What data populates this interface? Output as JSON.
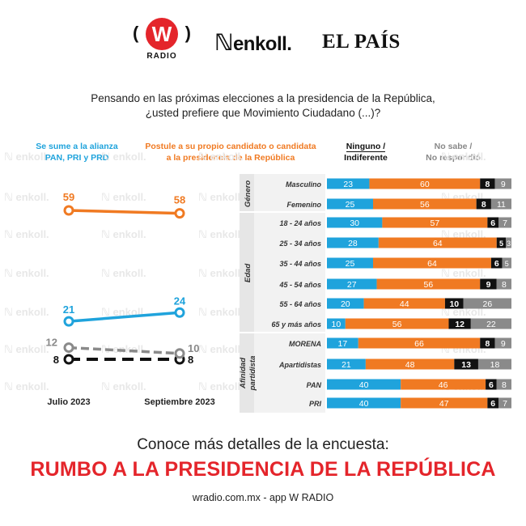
{
  "logos": {
    "wradio_letter": "W",
    "wradio_name": "RADIO",
    "enkoll": "enkoll.",
    "elpais": "EL PAÍS"
  },
  "question": {
    "line1": "Pensando en las próximas elecciones a la presidencia de la República,",
    "line2": "¿usted prefiere que Movimiento Ciudadano (...)?"
  },
  "legend": {
    "blue": [
      "Se sume a la alianza",
      "PAN, PRI y PRD"
    ],
    "orange": [
      "Postule a su propio candidato o candidata",
      "a la presidencia de la República"
    ],
    "black": [
      "Ninguno /",
      "Indiferente"
    ],
    "gray": [
      "No sabe /",
      "No respondió"
    ]
  },
  "watermark": "enkoll.",
  "colors": {
    "blue": "#1fa3dc",
    "orange": "#f07a22",
    "black": "#111111",
    "gray": "#8a8a8a",
    "red": "#e4252b"
  },
  "chart_data": [
    {
      "type": "line",
      "categories": [
        "Julio 2023",
        "Septiembre 2023"
      ],
      "series": [
        {
          "name": "Se sume a la alianza PAN, PRI y PRD",
          "values": [
            21,
            24
          ],
          "color": "blue",
          "style": "solid"
        },
        {
          "name": "Postule a su propio candidato o candidata a la presidencia de la República",
          "values": [
            59,
            58
          ],
          "color": "orange",
          "style": "solid"
        },
        {
          "name": "Ninguno / Indiferente",
          "values": [
            8,
            8
          ],
          "color": "black",
          "style": "dashed"
        },
        {
          "name": "No sabe / No respondió",
          "values": [
            12,
            10
          ],
          "color": "gray",
          "style": "dashed"
        }
      ]
    },
    {
      "type": "bar",
      "stacked": true,
      "groups": [
        {
          "label": "Género",
          "rows": [
            {
              "label": "Masculino",
              "values": [
                23,
                60,
                8,
                9
              ]
            },
            {
              "label": "Femenino",
              "values": [
                25,
                56,
                8,
                11
              ]
            }
          ]
        },
        {
          "label": "Edad",
          "rows": [
            {
              "label": "18 - 24 años",
              "values": [
                30,
                57,
                6,
                7
              ]
            },
            {
              "label": "25 - 34 años",
              "values": [
                28,
                64,
                5,
                3
              ]
            },
            {
              "label": "35 - 44 años",
              "values": [
                25,
                64,
                6,
                5
              ]
            },
            {
              "label": "45 - 54 años",
              "values": [
                27,
                56,
                9,
                8
              ]
            },
            {
              "label": "55 - 64 años",
              "values": [
                20,
                44,
                10,
                26
              ]
            },
            {
              "label": "65 y más años",
              "values": [
                10,
                56,
                12,
                22
              ]
            }
          ]
        },
        {
          "label": "Afinidad partidista",
          "rows": [
            {
              "label": "MORENA",
              "values": [
                17,
                66,
                8,
                9
              ]
            },
            {
              "label": "Apartidistas",
              "values": [
                21,
                48,
                13,
                18
              ]
            },
            {
              "label": "PAN",
              "values": [
                40,
                46,
                6,
                8
              ]
            },
            {
              "label": "PRI",
              "values": [
                40,
                47,
                6,
                7
              ]
            }
          ]
        }
      ]
    }
  ],
  "footer": {
    "subtitle": "Conoce más detalles de la encuesta:",
    "headline": "RUMBO A LA PRESIDENCIA DE LA REPÚBLICA",
    "url": "wradio.com.mx - app W RADIO"
  }
}
